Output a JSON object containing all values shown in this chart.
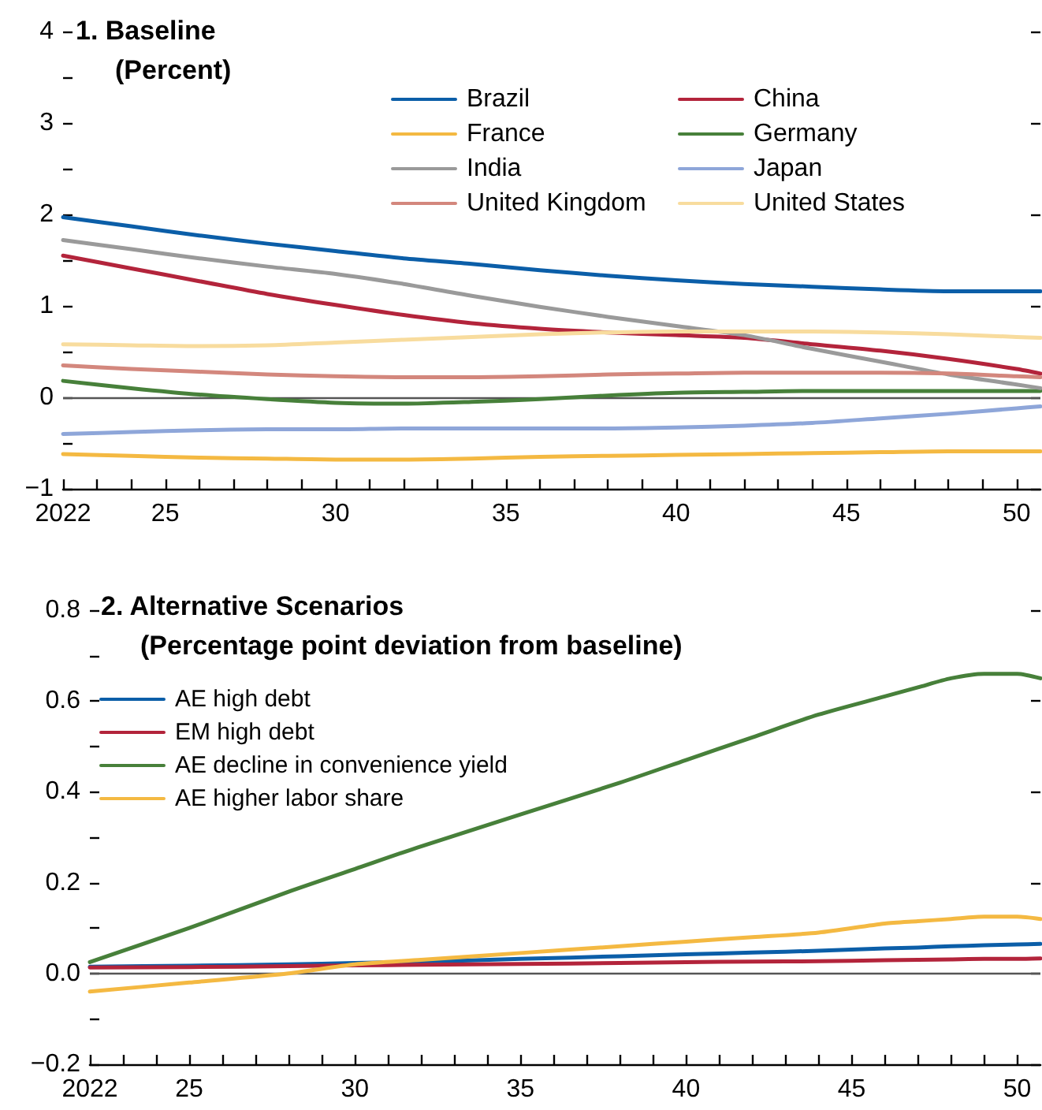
{
  "chart_data": [
    {
      "type": "line",
      "title": "1. Baseline",
      "subtitle": "(Percent)",
      "x": [
        2022,
        2024,
        2026,
        2028,
        2030,
        2032,
        2034,
        2036,
        2038,
        2040,
        2042,
        2044,
        2046,
        2048,
        2050,
        2050.7
      ],
      "series": [
        {
          "name": "Brazil",
          "color": "#0b5ea8",
          "values": [
            1.97,
            1.87,
            1.77,
            1.68,
            1.6,
            1.52,
            1.46,
            1.39,
            1.33,
            1.28,
            1.24,
            1.21,
            1.18,
            1.16,
            1.16,
            1.16
          ]
        },
        {
          "name": "China",
          "color": "#b3243b",
          "values": [
            1.55,
            1.41,
            1.27,
            1.13,
            1.01,
            0.9,
            0.81,
            0.75,
            0.71,
            0.68,
            0.65,
            0.58,
            0.51,
            0.42,
            0.31,
            0.26
          ]
        },
        {
          "name": "France",
          "color": "#f4b942",
          "values": [
            -0.62,
            -0.64,
            -0.66,
            -0.67,
            -0.68,
            -0.68,
            -0.67,
            -0.65,
            -0.64,
            -0.63,
            -0.62,
            -0.61,
            -0.6,
            -0.59,
            -0.59,
            -0.59
          ]
        },
        {
          "name": "Germany",
          "color": "#47803a",
          "values": [
            0.18,
            0.1,
            0.03,
            -0.02,
            -0.06,
            -0.07,
            -0.05,
            -0.02,
            0.02,
            0.05,
            0.06,
            0.07,
            0.07,
            0.07,
            0.07,
            0.07
          ]
        },
        {
          "name": "India",
          "color": "#9a9a9a",
          "values": [
            1.72,
            1.62,
            1.52,
            1.43,
            1.35,
            1.24,
            1.11,
            0.99,
            0.88,
            0.78,
            0.68,
            0.53,
            0.39,
            0.25,
            0.14,
            0.1
          ]
        },
        {
          "name": "Japan",
          "color": "#8ea6d9",
          "values": [
            -0.4,
            -0.38,
            -0.36,
            -0.35,
            -0.35,
            -0.34,
            -0.34,
            -0.34,
            -0.34,
            -0.33,
            -0.31,
            -0.28,
            -0.23,
            -0.18,
            -0.12,
            -0.1
          ]
        },
        {
          "name": "United Kingdom",
          "color": "#d3877d",
          "values": [
            0.35,
            0.31,
            0.28,
            0.25,
            0.23,
            0.22,
            0.22,
            0.23,
            0.25,
            0.26,
            0.27,
            0.27,
            0.27,
            0.26,
            0.23,
            0.22
          ]
        },
        {
          "name": "United States",
          "color": "#f8dc9e",
          "values": [
            0.58,
            0.57,
            0.56,
            0.57,
            0.6,
            0.63,
            0.66,
            0.69,
            0.71,
            0.72,
            0.72,
            0.72,
            0.71,
            0.69,
            0.66,
            0.65
          ]
        }
      ],
      "xlim": [
        2022,
        2050.7
      ],
      "xticks": [
        2022,
        {
          "value": 2023,
          "label": null
        },
        {
          "value": 2024,
          "label": null
        },
        {
          "value": 2025,
          "label": "25"
        },
        {
          "value": 2026,
          "label": null
        },
        {
          "value": 2027,
          "label": null
        },
        {
          "value": 2028,
          "label": null
        },
        {
          "value": 2029,
          "label": null
        },
        {
          "value": 2030,
          "label": "30"
        },
        {
          "value": 2031,
          "label": null
        },
        {
          "value": 2032,
          "label": null
        },
        {
          "value": 2033,
          "label": null
        },
        {
          "value": 2034,
          "label": null
        },
        {
          "value": 2035,
          "label": "35"
        },
        {
          "value": 2036,
          "label": null
        },
        {
          "value": 2037,
          "label": null
        },
        {
          "value": 2038,
          "label": null
        },
        {
          "value": 2039,
          "label": null
        },
        {
          "value": 2040,
          "label": "40"
        },
        {
          "value": 2041,
          "label": null
        },
        {
          "value": 2042,
          "label": null
        },
        {
          "value": 2043,
          "label": null
        },
        {
          "value": 2044,
          "label": null
        },
        {
          "value": 2045,
          "label": "45"
        },
        {
          "value": 2046,
          "label": null
        },
        {
          "value": 2047,
          "label": null
        },
        {
          "value": 2048,
          "label": null
        },
        {
          "value": 2049,
          "label": null
        },
        {
          "value": 2050,
          "label": "50"
        }
      ],
      "ylim": [
        -1,
        4
      ],
      "yticks": [
        {
          "value": -1,
          "label": "−1"
        },
        {
          "value": -0.5,
          "label": null
        },
        0,
        {
          "value": 0.5,
          "label": null
        },
        1,
        {
          "value": 1.5,
          "label": null
        },
        2,
        {
          "value": 2.5,
          "label": null
        },
        3,
        {
          "value": 3.5,
          "label": null
        },
        4
      ],
      "ref_lines": [
        {
          "axis": "y",
          "value": 0,
          "color": "#555555"
        }
      ],
      "legend": "top right",
      "marker": "none",
      "line_style": "solid"
    },
    {
      "type": "line",
      "title": "2. Alternative Scenarios",
      "subtitle": "(Percentage point deviation from baseline)",
      "x": [
        2022,
        2025,
        2028,
        2030,
        2032,
        2035,
        2038,
        2040,
        2042,
        2044,
        2046,
        2047,
        2048,
        2049,
        2050,
        2050.7
      ],
      "series": [
        {
          "name": "AE high debt",
          "color": "#0b5ea8",
          "values": [
            0.015,
            0.017,
            0.02,
            0.023,
            0.026,
            0.032,
            0.038,
            0.042,
            0.046,
            0.05,
            0.055,
            0.057,
            0.06,
            0.062,
            0.064,
            0.065
          ]
        },
        {
          "name": "EM high debt",
          "color": "#b3243b",
          "values": [
            0.013,
            0.014,
            0.016,
            0.018,
            0.019,
            0.021,
            0.023,
            0.025,
            0.026,
            0.027,
            0.029,
            0.03,
            0.031,
            0.032,
            0.032,
            0.033
          ]
        },
        {
          "name": "AE decline in convenience yield",
          "color": "#47803a",
          "values": [
            0.025,
            0.1,
            0.18,
            0.23,
            0.28,
            0.35,
            0.42,
            0.47,
            0.52,
            0.57,
            0.61,
            0.63,
            0.65,
            0.66,
            0.66,
            0.65
          ]
        },
        {
          "name": "AE higher labor share",
          "color": "#f4b942",
          "values": [
            -0.04,
            -0.02,
            0.0,
            0.02,
            0.03,
            0.045,
            0.06,
            0.07,
            0.08,
            0.09,
            0.11,
            0.115,
            0.12,
            0.125,
            0.125,
            0.12
          ]
        }
      ],
      "xlim": [
        2022,
        2050.7
      ],
      "xticks": [
        2022,
        {
          "value": 2023,
          "label": null
        },
        {
          "value": 2024,
          "label": null
        },
        {
          "value": 2025,
          "label": "25"
        },
        {
          "value": 2026,
          "label": null
        },
        {
          "value": 2027,
          "label": null
        },
        {
          "value": 2028,
          "label": null
        },
        {
          "value": 2029,
          "label": null
        },
        {
          "value": 2030,
          "label": "30"
        },
        {
          "value": 2031,
          "label": null
        },
        {
          "value": 2032,
          "label": null
        },
        {
          "value": 2033,
          "label": null
        },
        {
          "value": 2034,
          "label": null
        },
        {
          "value": 2035,
          "label": "35"
        },
        {
          "value": 2036,
          "label": null
        },
        {
          "value": 2037,
          "label": null
        },
        {
          "value": 2038,
          "label": null
        },
        {
          "value": 2039,
          "label": null
        },
        {
          "value": 2040,
          "label": "40"
        },
        {
          "value": 2041,
          "label": null
        },
        {
          "value": 2042,
          "label": null
        },
        {
          "value": 2043,
          "label": null
        },
        {
          "value": 2044,
          "label": null
        },
        {
          "value": 2045,
          "label": "45"
        },
        {
          "value": 2046,
          "label": null
        },
        {
          "value": 2047,
          "label": null
        },
        {
          "value": 2048,
          "label": null
        },
        {
          "value": 2049,
          "label": null
        },
        {
          "value": 2050,
          "label": "50"
        }
      ],
      "ylim": [
        -0.2,
        0.8
      ],
      "yticks": [
        {
          "value": -0.2,
          "label": "−0.2"
        },
        {
          "value": -0.1,
          "label": null
        },
        {
          "value": 0,
          "label": "0.0"
        },
        {
          "value": 0.1,
          "label": null
        },
        0.2,
        {
          "value": 0.3,
          "label": null
        },
        0.4,
        {
          "value": 0.5,
          "label": null
        },
        0.6,
        {
          "value": 0.7,
          "label": null
        },
        0.8
      ],
      "ref_lines": [
        {
          "axis": "y",
          "value": 0,
          "color": "#555555"
        }
      ],
      "legend": "top left",
      "marker": "none",
      "line_style": "solid"
    }
  ]
}
